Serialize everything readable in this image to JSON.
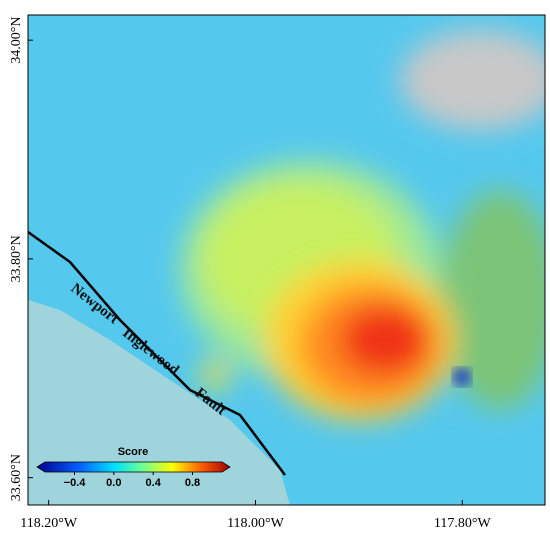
{
  "map": {
    "xlim": [
      -118.22,
      -117.72
    ],
    "ylim": [
      33.575,
      34.023
    ],
    "xticks": [
      {
        "value": -118.2,
        "label": "118.20°W"
      },
      {
        "value": -118.0,
        "label": "118.00°W"
      },
      {
        "value": -117.8,
        "label": "117.80°W"
      }
    ],
    "yticks": [
      {
        "value": 34.0,
        "label": "34.00°N"
      },
      {
        "value": 33.8,
        "label": "33.80°N"
      },
      {
        "value": 33.6,
        "label": "33.60°N"
      }
    ],
    "colorbar": {
      "title": "Score",
      "range": [
        -0.7,
        1.1
      ],
      "ticks": [
        {
          "value": -0.4,
          "label": "−0.4"
        },
        {
          "value": 0,
          "label": "0.0"
        },
        0.4,
        0.8
      ]
    },
    "fault_labels": [
      "Newport",
      "Inglewood",
      "Fault"
    ]
  }
}
